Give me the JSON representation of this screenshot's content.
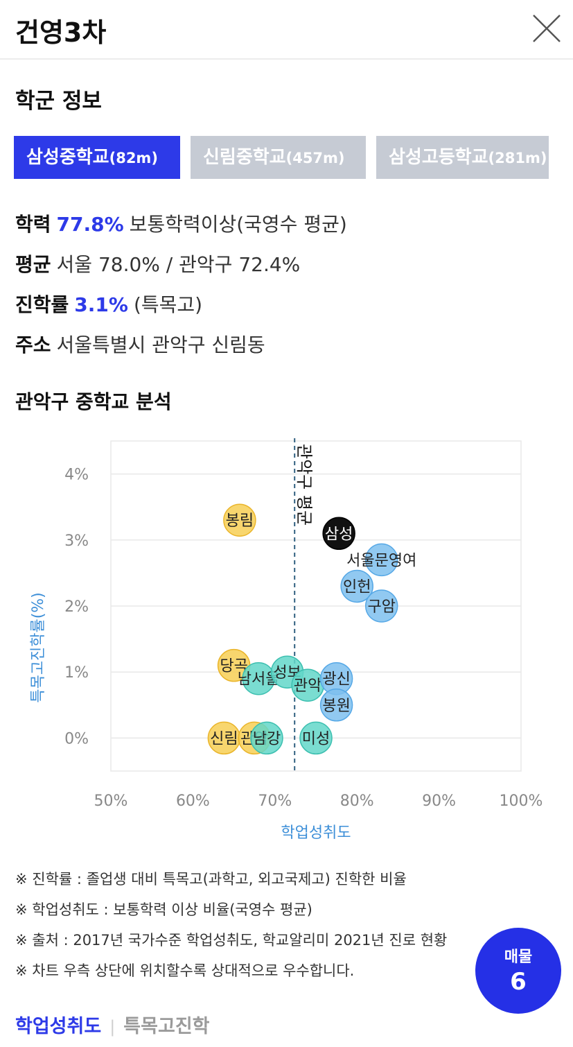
{
  "header": {
    "title": "건영3차"
  },
  "school_section": {
    "title": "학군 정보"
  },
  "school_tabs": [
    {
      "name": "삼성중학교",
      "distance": "(82m)",
      "active": true
    },
    {
      "name": "신림중학교",
      "distance": "(457m)",
      "active": false
    },
    {
      "name": "삼성고등학교",
      "distance": "(281m)",
      "active": false
    }
  ],
  "info": {
    "achievement": {
      "label": "학력",
      "value": "77.8%",
      "suffix": "보통학력이상(국영수 평균)"
    },
    "average": {
      "label": "평균",
      "value": "서울 78.0% / 관악구 72.4%"
    },
    "advancement": {
      "label": "진학률",
      "value": "3.1%",
      "suffix": "(특목고)"
    },
    "address": {
      "label": "주소",
      "value": "서울특별시 관악구 신림동"
    }
  },
  "analysis_section": {
    "title": "관악구 중학교 분석"
  },
  "chart_data": {
    "type": "scatter",
    "title": "관악구 중학교 분석",
    "xlabel": "학업성취도",
    "ylabel": "특목고진학률(%)",
    "xlim": [
      50,
      100
    ],
    "ylim": [
      -0.5,
      4.5
    ],
    "x_ticks": [
      "50%",
      "60%",
      "70%",
      "80%",
      "90%",
      "100%"
    ],
    "y_ticks": [
      "4%",
      "3%",
      "2%",
      "1%",
      "0%"
    ],
    "reference_line": {
      "x": 72.4,
      "label": "관악구 평균"
    },
    "colors": {
      "yellow": "#f7cf55",
      "teal": "#63d7c9",
      "blue": "#7ec0ee",
      "black": "#111111",
      "grid": "#e8e8e8",
      "axis_text": "#888888",
      "axis_label": "#3d8fd8",
      "ref_line": "#2f5f7f"
    },
    "points": [
      {
        "label": "봉림",
        "x": 65.7,
        "y": 3.3,
        "color": "yellow"
      },
      {
        "label": "당곡",
        "x": 65.0,
        "y": 1.1,
        "color": "yellow"
      },
      {
        "label": "신림",
        "x": 63.8,
        "y": 0.0,
        "color": "yellow"
      },
      {
        "label": "관악",
        "x": 67.5,
        "y": 0.0,
        "color": "yellow"
      },
      {
        "label": "남서울",
        "x": 68.0,
        "y": 0.9,
        "color": "teal"
      },
      {
        "label": "성보",
        "x": 71.5,
        "y": 1.0,
        "color": "teal"
      },
      {
        "label": "관악",
        "x": 74.0,
        "y": 0.8,
        "color": "teal"
      },
      {
        "label": "남강",
        "x": 69.0,
        "y": 0.0,
        "color": "teal"
      },
      {
        "label": "미성",
        "x": 75.0,
        "y": 0.0,
        "color": "teal"
      },
      {
        "label": "삼성",
        "x": 77.8,
        "y": 3.1,
        "color": "black"
      },
      {
        "label": "서울문영여",
        "x": 83.0,
        "y": 2.7,
        "color": "blue"
      },
      {
        "label": "인헌",
        "x": 80.0,
        "y": 2.3,
        "color": "blue"
      },
      {
        "label": "구암",
        "x": 83.0,
        "y": 2.0,
        "color": "blue"
      },
      {
        "label": "광신",
        "x": 77.5,
        "y": 0.9,
        "color": "blue"
      },
      {
        "label": "봉원",
        "x": 77.5,
        "y": 0.5,
        "color": "blue"
      }
    ]
  },
  "notes": [
    "※ 진학률 : 졸업생 대비 특목고(과학고, 외고국제고) 진학한 비율",
    "※ 학업성취도 : 보통학력 이상 비율(국영수 평균)",
    "※ 출처 : 2017년 국가수준 학업성취도, 학교알리미 2021년 진로 현황",
    "※ 차트 우측 상단에 위치할수록 상대적으로 우수합니다."
  ],
  "bottom_tabs": {
    "active": "학업성취도",
    "inactive": "특목고진학"
  },
  "fab": {
    "label": "매물",
    "count": "6"
  }
}
